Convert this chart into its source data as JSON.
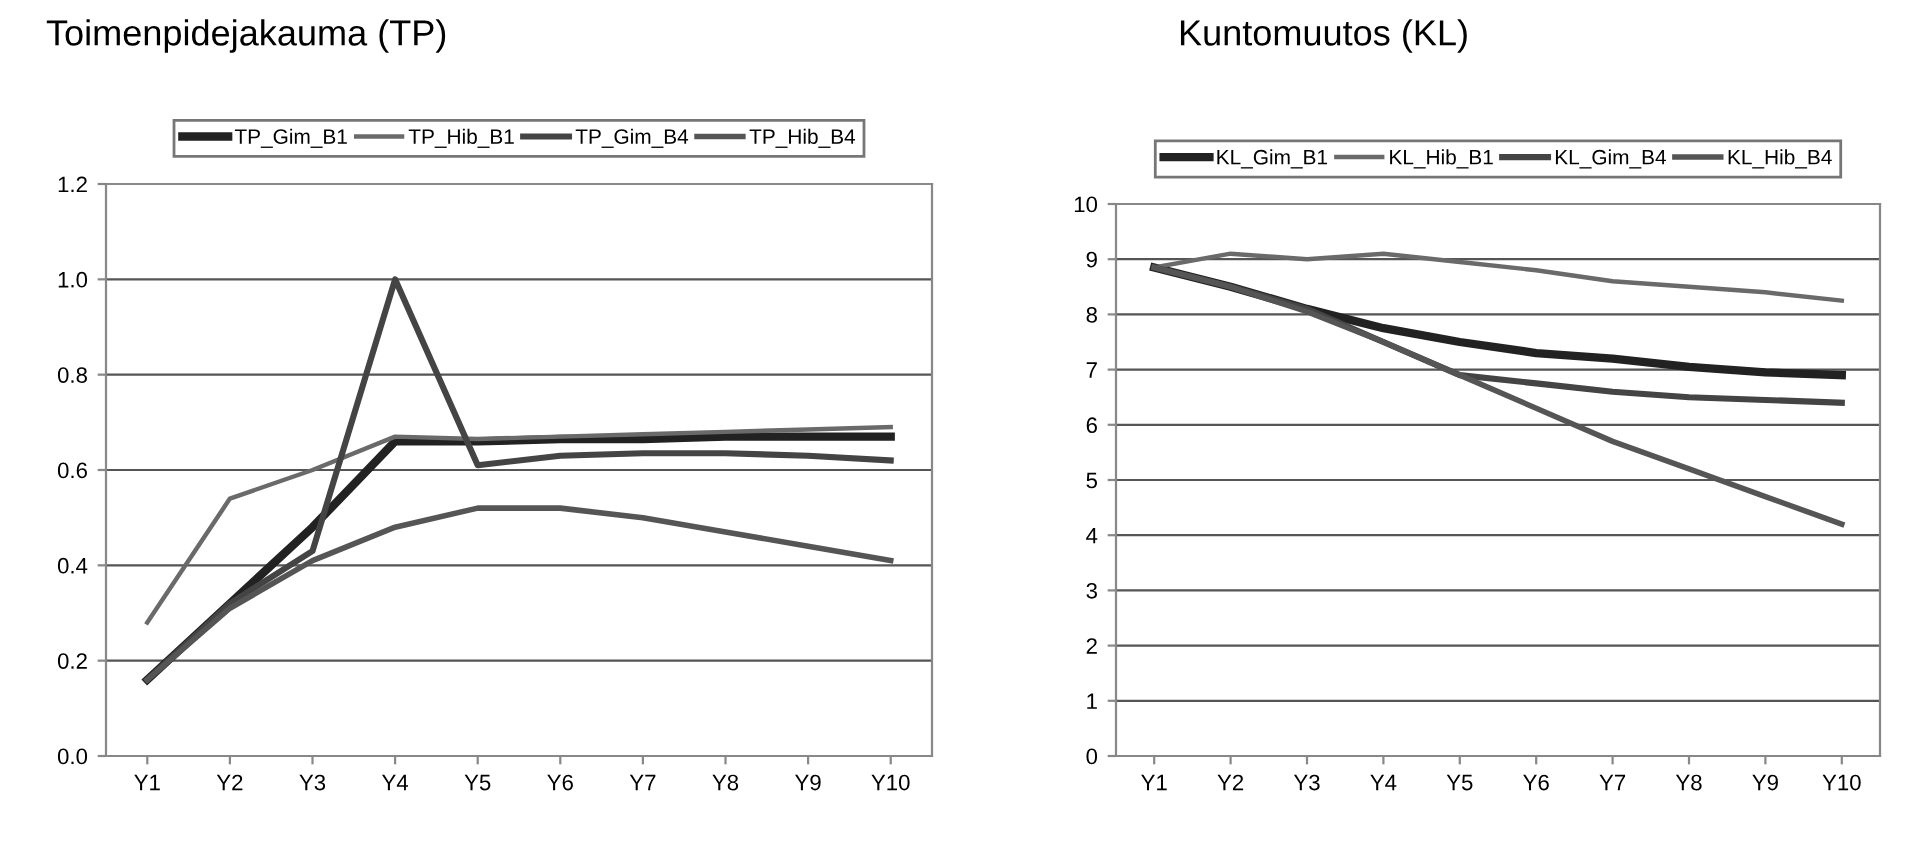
{
  "chart_data": [
    {
      "type": "line",
      "title": "Toimenpidejakauma (TP)",
      "categories": [
        "Y1",
        "Y2",
        "Y3",
        "Y4",
        "Y5",
        "Y6",
        "Y7",
        "Y8",
        "Y9",
        "Y10"
      ],
      "ylim": [
        0,
        1.2
      ],
      "yticks": [
        {
          "value": 0,
          "label": "0.0"
        },
        {
          "value": 0.2,
          "label": "0.2"
        },
        {
          "value": 0.4,
          "label": "0.4"
        },
        {
          "value": 0.6,
          "label": "0.6"
        },
        {
          "value": 0.8,
          "label": "0.8"
        },
        {
          "value": 1.0,
          "label": "1.0"
        },
        {
          "value": 1.2,
          "label": "1.2"
        }
      ],
      "grid": "y",
      "legend": "top",
      "series": [
        {
          "name": "TP_Gim_B1",
          "color": "#222222",
          "values": [
            0.16,
            0.32,
            0.48,
            0.66,
            0.66,
            0.665,
            0.665,
            0.67,
            0.67,
            0.67
          ]
        },
        {
          "name": "TP_Hib_B1",
          "color": "#6a6a6a",
          "values": [
            0.28,
            0.54,
            0.6,
            0.67,
            0.665,
            0.67,
            0.675,
            0.68,
            0.685,
            0.69
          ]
        },
        {
          "name": "TP_Gim_B4",
          "color": "#444444",
          "values": [
            0.16,
            0.32,
            0.43,
            1.0,
            0.61,
            0.63,
            0.635,
            0.635,
            0.63,
            0.62
          ]
        },
        {
          "name": "TP_Hib_B4",
          "color": "#555555",
          "values": [
            0.16,
            0.31,
            0.41,
            0.48,
            0.52,
            0.52,
            0.5,
            0.47,
            0.44,
            0.41
          ]
        }
      ]
    },
    {
      "type": "line",
      "title": "Kuntomuutos (KL)",
      "categories": [
        "Y1",
        "Y2",
        "Y3",
        "Y4",
        "Y5",
        "Y6",
        "Y7",
        "Y8",
        "Y9",
        "Y10"
      ],
      "ylim": [
        0,
        10
      ],
      "yticks": [
        0,
        1,
        2,
        3,
        4,
        5,
        6,
        7,
        8,
        9,
        10
      ],
      "grid": "y",
      "legend": "top",
      "series": [
        {
          "name": "KL_Gim_B1",
          "color": "#222222",
          "values": [
            8.85,
            8.5,
            8.1,
            7.75,
            7.5,
            7.3,
            7.2,
            7.05,
            6.95,
            6.9
          ]
        },
        {
          "name": "KL_Hib_B1",
          "color": "#6a6a6a",
          "values": [
            8.85,
            9.1,
            9.0,
            9.1,
            8.95,
            8.8,
            8.6,
            8.5,
            8.4,
            8.25
          ]
        },
        {
          "name": "KL_Gim_B4",
          "color": "#444444",
          "values": [
            8.85,
            8.5,
            8.1,
            7.5,
            6.9,
            6.75,
            6.6,
            6.5,
            6.45,
            6.4
          ]
        },
        {
          "name": "KL_Hib_B4",
          "color": "#555555",
          "values": [
            8.85,
            8.5,
            8.05,
            7.5,
            6.9,
            6.3,
            5.7,
            5.2,
            4.7,
            4.2
          ]
        }
      ]
    }
  ]
}
